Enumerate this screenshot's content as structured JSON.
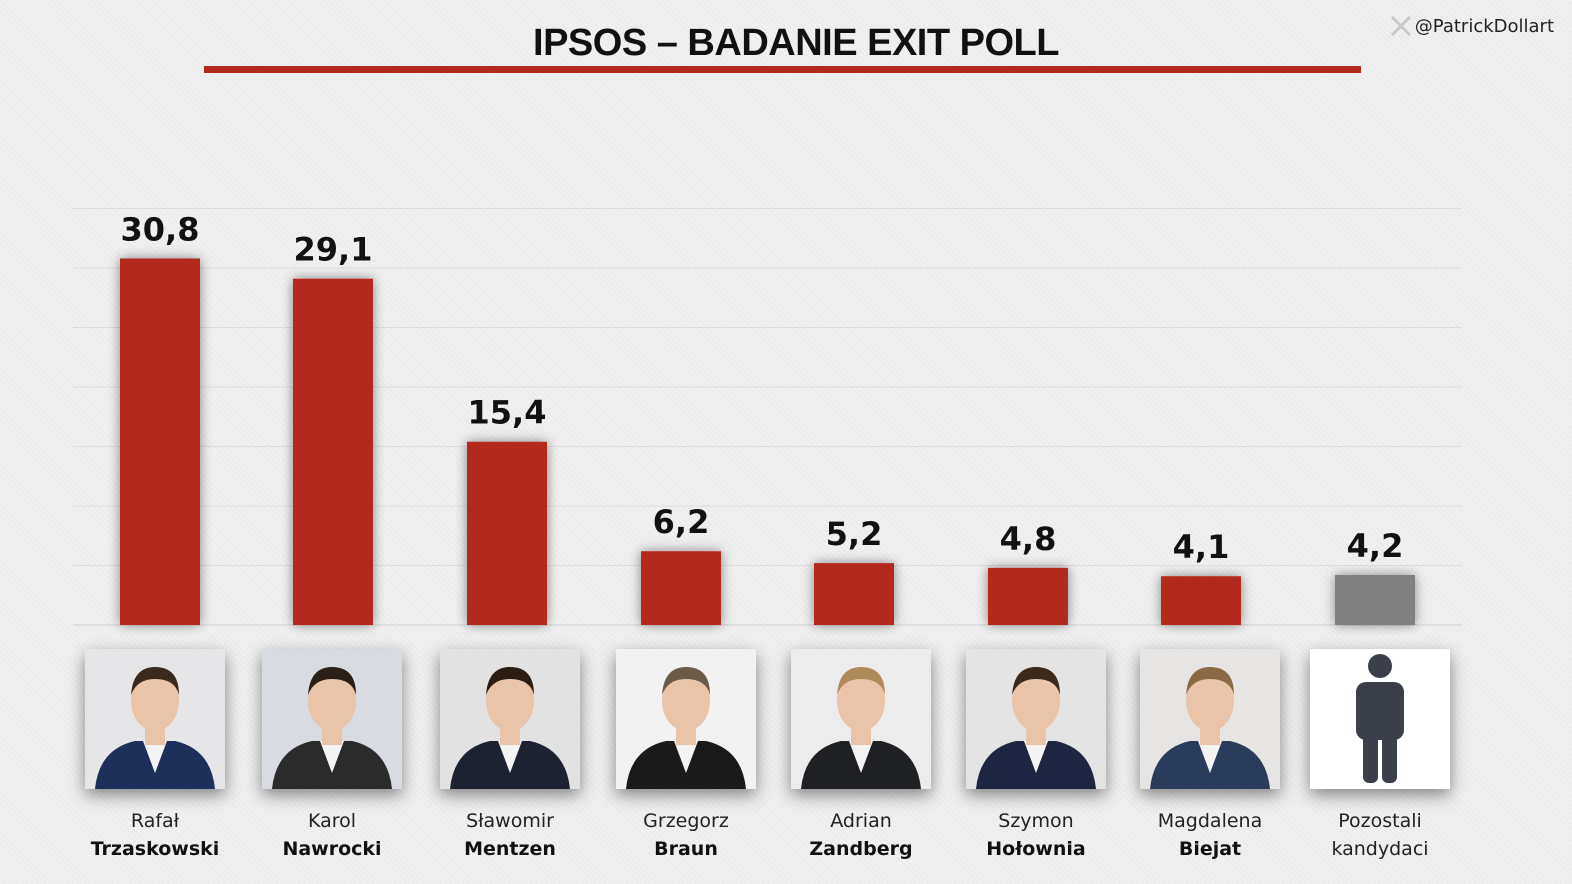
{
  "title": "IPSOS – BADANIE EXIT POLL",
  "credit": "@PatrickDollart",
  "colors": {
    "bar": "#b32a1d",
    "other_bar": "#808080",
    "rule": "#b32a1d"
  },
  "candidates": [
    {
      "first": "Rafał",
      "last": "Trzaskowski",
      "value_label": "30,8",
      "portrait": "trzaskowski-photo"
    },
    {
      "first": "Karol",
      "last": "Nawrocki",
      "value_label": "29,1",
      "portrait": "nawrocki-photo"
    },
    {
      "first": "Sławomir",
      "last": "Mentzen",
      "value_label": "15,4",
      "portrait": "mentzen-photo"
    },
    {
      "first": "Grzegorz",
      "last": "Braun",
      "value_label": "6,2",
      "portrait": "braun-photo"
    },
    {
      "first": "Adrian",
      "last": "Zandberg",
      "value_label": "5,2",
      "portrait": "zandberg-photo"
    },
    {
      "first": "Szymon",
      "last": "Hołownia",
      "value_label": "4,8",
      "portrait": "holownia-photo"
    },
    {
      "first": "Magdalena",
      "last": "Biejat",
      "value_label": "4,1",
      "portrait": "biejat-photo"
    },
    {
      "first": "Pozostali",
      "last": "kandydaci",
      "value_label": "4,2",
      "portrait": "person-silhouette-icon"
    }
  ],
  "chart_data": {
    "type": "bar",
    "title": "IPSOS – BADANIE EXIT POLL",
    "xlabel": "",
    "ylabel": "",
    "categories": [
      "Rafał Trzaskowski",
      "Karol Nawrocki",
      "Sławomir Mentzen",
      "Grzegorz Braun",
      "Adrian Zandberg",
      "Szymon Hołownia",
      "Magdalena Biejat",
      "Pozostali kandydaci"
    ],
    "values": [
      30.8,
      29.1,
      15.4,
      6.2,
      5.2,
      4.8,
      4.1,
      4.2
    ],
    "data_labels": [
      "30,8",
      "29,1",
      "15,4",
      "6,2",
      "5,2",
      "4,8",
      "4,1",
      "4,2"
    ],
    "ylim": [
      0,
      35
    ],
    "grid": true,
    "legend": "none",
    "bar_colors": [
      "#b32a1d",
      "#b32a1d",
      "#b32a1d",
      "#b32a1d",
      "#b32a1d",
      "#b32a1d",
      "#b32a1d",
      "#808080"
    ]
  }
}
